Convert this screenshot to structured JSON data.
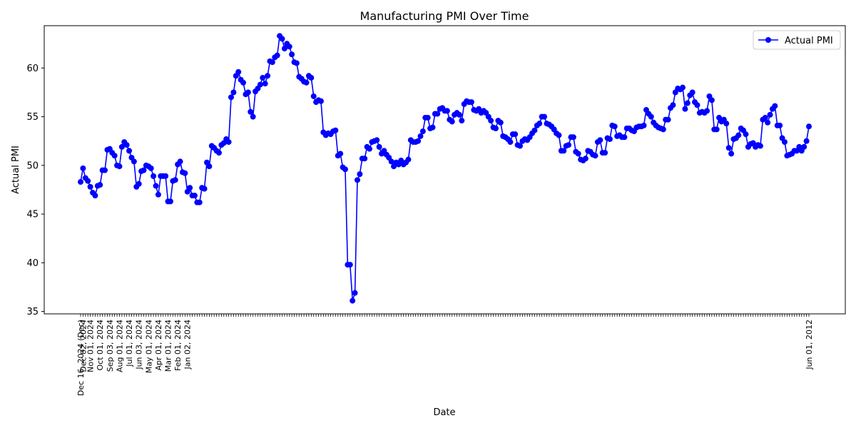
{
  "chart_data": {
    "type": "line",
    "title": "Manufacturing PMI Over Time",
    "xlabel": "Date",
    "ylabel": "Actual PMI",
    "ylim": [
      34.75,
      64.35
    ],
    "yticks": [
      35,
      40,
      45,
      50,
      55,
      60
    ],
    "grid": false,
    "legend_position": "top-right",
    "x_order": "reverse-chronological",
    "series": [
      {
        "name": "Actual PMI",
        "color": "#0000ff",
        "marker": "circle",
        "values": [
          48.3,
          49.7,
          48.7,
          48.4,
          47.8,
          47.2,
          46.9,
          47.9,
          48.0,
          49.5,
          49.5,
          51.6,
          51.7,
          51.3,
          51.0,
          50.0,
          49.9,
          51.9,
          52.4,
          52.1,
          51.5,
          50.8,
          50.4,
          47.8,
          48.1,
          49.4,
          49.5,
          50.0,
          49.9,
          49.7,
          48.9,
          47.9,
          47.0,
          48.9,
          48.9,
          48.9,
          46.3,
          46.3,
          48.4,
          48.5,
          50.1,
          50.4,
          49.3,
          49.2,
          47.3,
          47.7,
          46.9,
          46.9,
          46.2,
          46.2,
          47.7,
          47.6,
          50.3,
          49.9,
          52.0,
          51.8,
          51.5,
          51.3,
          52.1,
          52.3,
          52.7,
          52.4,
          57.0,
          57.5,
          59.2,
          59.6,
          58.8,
          58.5,
          57.3,
          57.5,
          55.5,
          55.0,
          57.6,
          57.9,
          58.3,
          59.0,
          58.4,
          59.2,
          60.7,
          60.6,
          61.1,
          61.3,
          63.3,
          63.0,
          62.0,
          62.5,
          62.2,
          61.4,
          60.6,
          60.5,
          59.1,
          58.9,
          58.6,
          58.5,
          59.2,
          59.0,
          57.1,
          56.5,
          56.7,
          56.6,
          53.4,
          53.1,
          53.3,
          53.2,
          53.5,
          53.6,
          51.0,
          51.2,
          49.8,
          49.6,
          39.8,
          39.8,
          36.1,
          36.9,
          48.5,
          49.1,
          50.7,
          50.7,
          51.9,
          51.7,
          52.4,
          52.5,
          52.6,
          51.9,
          51.2,
          51.5,
          51.1,
          50.8,
          50.4,
          49.9,
          50.3,
          50.1,
          50.5,
          50.1,
          50.3,
          50.6,
          52.6,
          52.4,
          52.4,
          52.5,
          53.0,
          53.5,
          54.9,
          54.9,
          53.8,
          53.9,
          55.3,
          55.3,
          55.8,
          55.9,
          55.6,
          55.6,
          54.7,
          54.5,
          55.2,
          55.4,
          55.2,
          54.6,
          56.3,
          56.6,
          56.5,
          56.5,
          55.7,
          55.6,
          55.8,
          55.4,
          55.6,
          55.4,
          55.0,
          54.6,
          53.9,
          53.8,
          54.6,
          54.4,
          53.0,
          52.9,
          52.7,
          52.4,
          53.2,
          53.2,
          52.1,
          52.0,
          52.5,
          52.7,
          52.6,
          52.9,
          53.3,
          53.6,
          54.1,
          54.3,
          55.0,
          55.0,
          54.3,
          54.2,
          54.0,
          53.7,
          53.3,
          53.1,
          51.5,
          51.5,
          52.0,
          52.1,
          52.9,
          52.9,
          51.4,
          51.2,
          50.6,
          50.5,
          50.7,
          51.5,
          51.4,
          51.1,
          51.0,
          52.4,
          52.6,
          51.3,
          51.3,
          52.8,
          52.7,
          54.1,
          54.0,
          53.0,
          53.1,
          52.9,
          52.9,
          53.8,
          53.8,
          53.6,
          53.5,
          53.9,
          54.0,
          54.0,
          54.1,
          55.7,
          55.3,
          55.0,
          54.4,
          54.1,
          53.9,
          53.8,
          53.7,
          54.7,
          54.7,
          55.9,
          56.2,
          57.5,
          57.9,
          57.8,
          58.0,
          55.8,
          56.4,
          57.2,
          57.5,
          56.5,
          56.2,
          55.4,
          55.5,
          55.4,
          55.6,
          57.1,
          56.7,
          53.7,
          53.7,
          54.9,
          54.5,
          54.7,
          54.3,
          51.8,
          51.2,
          52.7,
          52.8,
          53.1,
          53.8,
          53.6,
          53.2,
          51.9,
          52.2,
          52.3,
          51.9,
          52.1,
          52.0,
          54.7,
          54.9,
          54.4,
          55.2,
          55.8,
          56.1,
          54.1,
          54.1,
          52.8,
          52.4,
          51.0,
          51.1,
          51.2,
          51.5,
          51.5,
          51.9,
          51.5,
          51.9,
          52.5,
          54.0
        ]
      }
    ],
    "x_tick_labels_partial": [
      "Dec 16, 2024 (Dec)",
      "Dec 02, 2024",
      "Nov 01, 2024",
      "Oct 01, 2024",
      "Sep 03, 2024",
      "Aug 01, 2024",
      "Jul 01, 2024",
      "Jun 03, 2024",
      "May 01, 2024",
      "Apr 01, 2024",
      "Mar 01, 2024",
      "Feb 01, 2024",
      "Jan 02, 2024",
      "Jun 01, 2012"
    ]
  }
}
